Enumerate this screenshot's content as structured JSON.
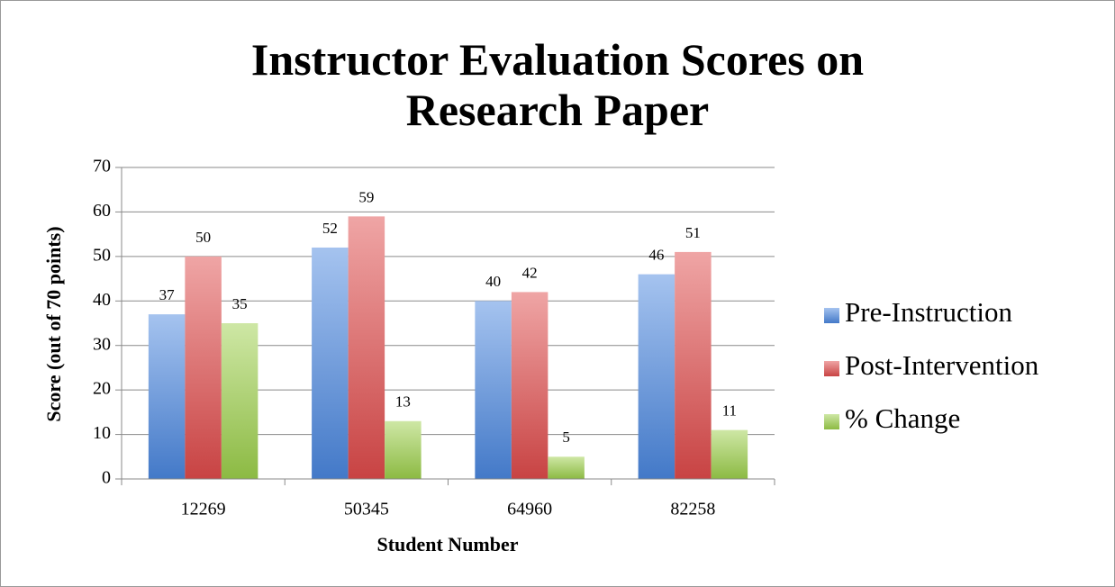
{
  "chart_data": {
    "type": "bar",
    "title": "Instructor Evaluation Scores on Research Paper",
    "x_label": "Student Number",
    "y_label": "Score (out of 70 points)",
    "categories": [
      "12269",
      "50345",
      "64960",
      "82258"
    ],
    "series": [
      {
        "name": "Pre-Instruction",
        "color": "#4a86de",
        "values": [
          37,
          52,
          40,
          46
        ]
      },
      {
        "name": "Post-Intervention",
        "color": "#de4a4a",
        "values": [
          50,
          59,
          42,
          51
        ]
      },
      {
        "name": "% Change",
        "color": "#9ccf4a",
        "values": [
          35,
          13,
          5,
          11
        ]
      }
    ],
    "ylim": [
      0,
      70
    ],
    "yticks": [
      0,
      10,
      20,
      30,
      40,
      50,
      60,
      70
    ],
    "grid": true,
    "legend": "right",
    "data_labels": true
  }
}
